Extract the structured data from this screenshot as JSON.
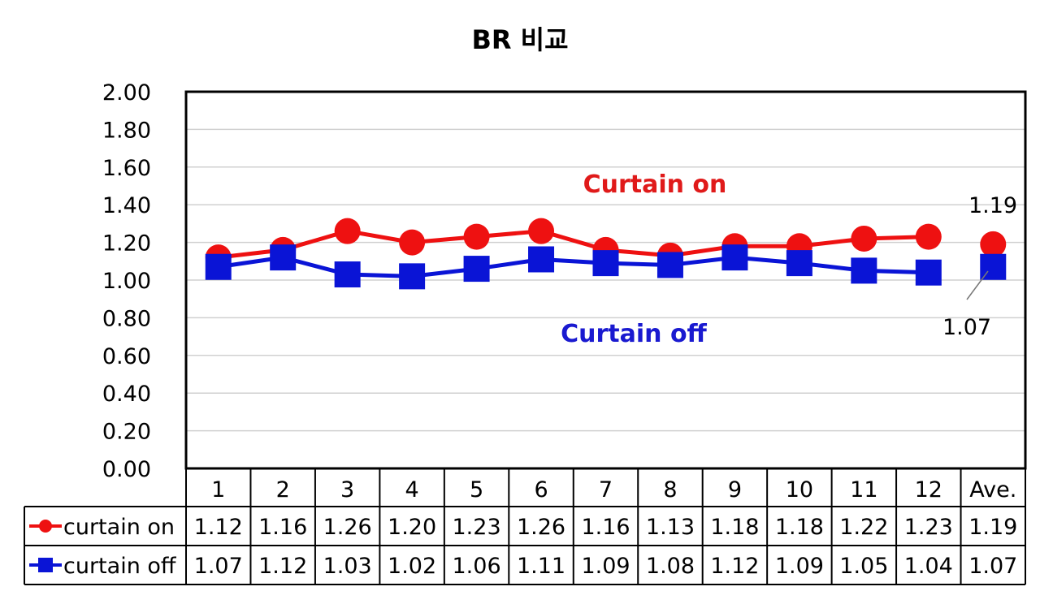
{
  "chart_data": {
    "type": "line",
    "title": "BR 비교",
    "categories": [
      "1",
      "2",
      "3",
      "4",
      "5",
      "6",
      "7",
      "8",
      "9",
      "10",
      "11",
      "12",
      "Ave."
    ],
    "ylim": [
      0,
      2.0
    ],
    "yticks": [
      "0.00",
      "0.20",
      "0.40",
      "0.60",
      "0.80",
      "1.00",
      "1.20",
      "1.40",
      "1.60",
      "1.80",
      "2.00"
    ],
    "grid": true,
    "legend": "data-table",
    "series": [
      {
        "name": "curtain on",
        "color": "#ee1111",
        "marker": "circle",
        "values": [
          1.12,
          1.16,
          1.26,
          1.2,
          1.23,
          1.26,
          1.16,
          1.13,
          1.18,
          1.18,
          1.22,
          1.23,
          1.19
        ],
        "table_values": [
          "1.12",
          "1.16",
          "1.26",
          "1.20",
          "1.23",
          "1.26",
          "1.16",
          "1.13",
          "1.18",
          "1.18",
          "1.22",
          "1.23",
          "1.19"
        ]
      },
      {
        "name": "curtain off",
        "color": "#0a14d6",
        "marker": "square",
        "values": [
          1.07,
          1.12,
          1.03,
          1.02,
          1.06,
          1.11,
          1.09,
          1.08,
          1.12,
          1.09,
          1.05,
          1.04,
          1.07
        ],
        "table_values": [
          "1.07",
          "1.12",
          "1.03",
          "1.02",
          "1.06",
          "1.11",
          "1.09",
          "1.08",
          "1.12",
          "1.09",
          "1.05",
          "1.04",
          "1.07"
        ]
      }
    ],
    "annotations": [
      {
        "text": "Curtain on",
        "color": "#e01a1a"
      },
      {
        "text": "Curtain off",
        "color": "#1a1ad0"
      }
    ],
    "value_labels": [
      "1.19",
      "1.07"
    ]
  }
}
